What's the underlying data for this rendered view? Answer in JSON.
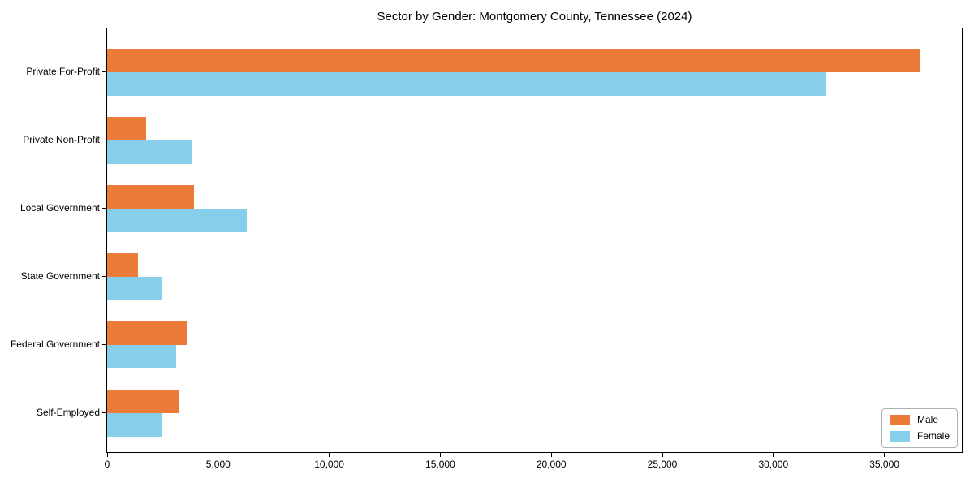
{
  "chart_data": {
    "type": "bar",
    "orientation": "horizontal",
    "title": "Sector by Gender: Montgomery County, Tennessee (2024)",
    "xlabel": "",
    "ylabel": "",
    "categories": [
      "Private For-Profit",
      "Private Non-Profit",
      "Local Government",
      "State Government",
      "Federal Government",
      "Self-Employed"
    ],
    "series": [
      {
        "name": "Male",
        "color": "#EC7A38",
        "values": [
          36600,
          1750,
          3900,
          1400,
          3600,
          3200
        ]
      },
      {
        "name": "Female",
        "color": "#87CEEB",
        "values": [
          32400,
          3800,
          6300,
          2500,
          3100,
          2450
        ]
      }
    ],
    "xlim": [
      0,
      38450
    ],
    "xticks": [
      0,
      5000,
      10000,
      15000,
      20000,
      25000,
      30000,
      35000
    ],
    "xtick_labels": [
      "0",
      "5,000",
      "10,000",
      "15,000",
      "20,000",
      "25,000",
      "30,000",
      "35,000"
    ],
    "grid": false,
    "legend": {
      "position": "lower right"
    }
  }
}
